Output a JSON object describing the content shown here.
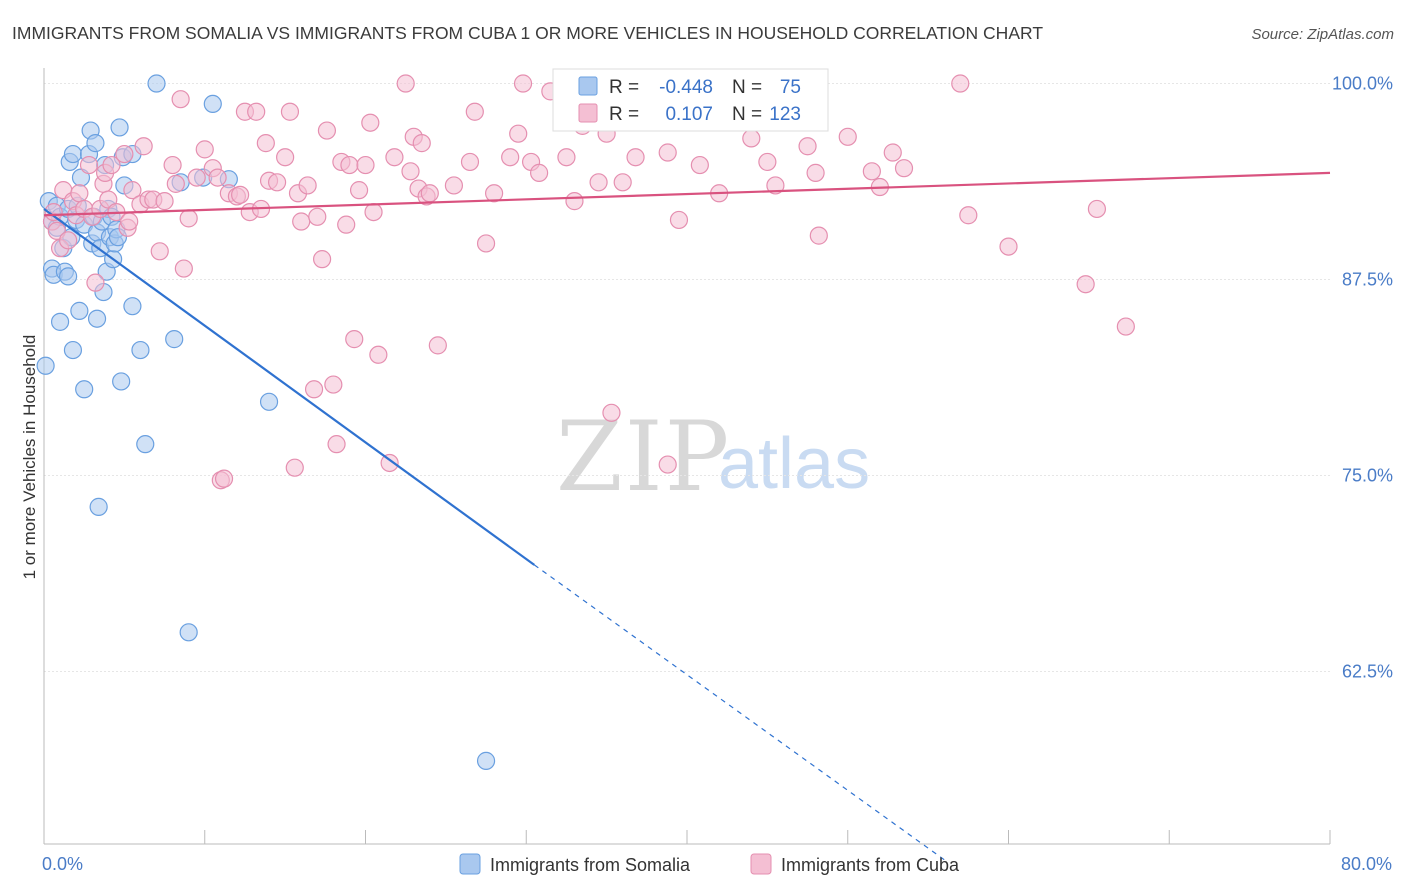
{
  "chart_data": {
    "type": "scatter",
    "title": "IMMIGRANTS FROM SOMALIA VS IMMIGRANTS FROM CUBA 1 OR MORE VEHICLES IN HOUSEHOLD CORRELATION CHART",
    "source": "Source: ZipAtlas.com",
    "xlabel": "",
    "ylabel": "1 or more Vehicles in Household",
    "xlim": [
      0,
      80
    ],
    "ylim": [
      51.5,
      101.5
    ],
    "x_tick_labels": [
      "0.0%",
      "80.0%"
    ],
    "y_ticks": [
      100,
      87.5,
      75,
      62.5
    ],
    "y_tick_labels": [
      "100.0%",
      "87.5%",
      "75.0%",
      "62.5%"
    ],
    "legend_position": "bottom-center",
    "watermark": {
      "zip": "ZIP",
      "atlas": "atlas"
    },
    "stats": [
      {
        "r_label": "R =",
        "r": "-0.448",
        "n_label": "N =",
        "n": "75"
      },
      {
        "r_label": "R =",
        "r": "0.107",
        "n_label": "N =",
        "n": "123"
      }
    ],
    "series": [
      {
        "name": "Immigrants from Somalia",
        "color": "#6aa0e0",
        "fill": "#a9c8ef",
        "line_color": "#2f72d0",
        "trend": {
          "x0": 0,
          "y0": 92.0,
          "x1": 30.5,
          "y1": 69.3,
          "dash_x1": 56,
          "dash_y1": 50.5
        },
        "points": [
          [
            0.1,
            82.0
          ],
          [
            0.3,
            92.5
          ],
          [
            0.5,
            88.2
          ],
          [
            0.5,
            91.2
          ],
          [
            0.6,
            87.8
          ],
          [
            0.8,
            92.2
          ],
          [
            0.8,
            90.8
          ],
          [
            1.0,
            91.5
          ],
          [
            1.0,
            84.8
          ],
          [
            1.2,
            89.5
          ],
          [
            1.3,
            88.0
          ],
          [
            1.5,
            87.7
          ],
          [
            1.5,
            92.0
          ],
          [
            1.6,
            95.0
          ],
          [
            1.7,
            90.2
          ],
          [
            1.8,
            95.5
          ],
          [
            1.8,
            83.0
          ],
          [
            2.0,
            91.3
          ],
          [
            2.1,
            92.2
          ],
          [
            2.2,
            85.5
          ],
          [
            2.3,
            94.0
          ],
          [
            2.5,
            91.0
          ],
          [
            2.5,
            80.5
          ],
          [
            2.8,
            95.5
          ],
          [
            2.9,
            97.0
          ],
          [
            3.0,
            89.8
          ],
          [
            3.1,
            91.5
          ],
          [
            3.2,
            96.2
          ],
          [
            3.3,
            90.5
          ],
          [
            3.3,
            85.0
          ],
          [
            3.4,
            73.0
          ],
          [
            3.5,
            89.5
          ],
          [
            3.6,
            91.2
          ],
          [
            3.7,
            86.7
          ],
          [
            3.8,
            94.8
          ],
          [
            3.9,
            88.0
          ],
          [
            4.0,
            92.0
          ],
          [
            4.1,
            90.2
          ],
          [
            4.2,
            91.5
          ],
          [
            4.3,
            88.8
          ],
          [
            4.4,
            89.8
          ],
          [
            4.5,
            90.7
          ],
          [
            4.6,
            90.2
          ],
          [
            4.7,
            97.2
          ],
          [
            4.8,
            81.0
          ],
          [
            4.9,
            95.3
          ],
          [
            5.0,
            93.5
          ],
          [
            5.5,
            95.5
          ],
          [
            5.5,
            85.8
          ],
          [
            6.0,
            83.0
          ],
          [
            6.3,
            77.0
          ],
          [
            7.0,
            100.0
          ],
          [
            8.1,
            83.7
          ],
          [
            8.5,
            93.7
          ],
          [
            9.0,
            65.0
          ],
          [
            9.9,
            94.0
          ],
          [
            10.5,
            98.7
          ],
          [
            11.5,
            93.9
          ],
          [
            14.0,
            79.7
          ],
          [
            27.5,
            56.8
          ]
        ]
      },
      {
        "name": "Immigrants from Cuba",
        "color": "#e58fb0",
        "fill": "#f4bfd3",
        "line_color": "#d9527f",
        "trend": {
          "x0": 0,
          "y0": 91.6,
          "x1": 80,
          "y1": 94.3
        },
        "points": [
          [
            0.5,
            91.2
          ],
          [
            0.6,
            91.8
          ],
          [
            0.8,
            90.6
          ],
          [
            1.0,
            89.5
          ],
          [
            1.2,
            93.2
          ],
          [
            1.5,
            90.0
          ],
          [
            1.8,
            92.5
          ],
          [
            2.0,
            91.6
          ],
          [
            2.2,
            93.0
          ],
          [
            2.5,
            92.0
          ],
          [
            2.8,
            94.8
          ],
          [
            3.0,
            91.5
          ],
          [
            3.2,
            87.3
          ],
          [
            3.5,
            92.0
          ],
          [
            3.7,
            93.6
          ],
          [
            3.8,
            94.3
          ],
          [
            4.0,
            92.6
          ],
          [
            4.2,
            94.8
          ],
          [
            4.5,
            91.8
          ],
          [
            5.0,
            95.5
          ],
          [
            5.2,
            90.8
          ],
          [
            5.3,
            91.2
          ],
          [
            5.5,
            93.2
          ],
          [
            6.0,
            92.3
          ],
          [
            6.2,
            96.0
          ],
          [
            6.5,
            92.6
          ],
          [
            6.8,
            92.6
          ],
          [
            7.2,
            89.3
          ],
          [
            7.5,
            92.5
          ],
          [
            8.0,
            94.8
          ],
          [
            8.2,
            93.6
          ],
          [
            8.5,
            99.0
          ],
          [
            8.7,
            88.2
          ],
          [
            9.0,
            91.4
          ],
          [
            9.5,
            94.0
          ],
          [
            10.0,
            95.8
          ],
          [
            10.5,
            94.6
          ],
          [
            10.8,
            94.0
          ],
          [
            11.0,
            74.7
          ],
          [
            11.2,
            74.8
          ],
          [
            11.5,
            93.0
          ],
          [
            12.0,
            92.8
          ],
          [
            12.2,
            92.9
          ],
          [
            12.5,
            98.2
          ],
          [
            12.8,
            91.8
          ],
          [
            13.2,
            98.2
          ],
          [
            13.5,
            92.0
          ],
          [
            13.8,
            96.2
          ],
          [
            14.0,
            93.8
          ],
          [
            14.5,
            93.7
          ],
          [
            15.0,
            95.3
          ],
          [
            15.3,
            98.2
          ],
          [
            15.6,
            75.5
          ],
          [
            15.8,
            93.0
          ],
          [
            16.0,
            91.2
          ],
          [
            16.4,
            93.5
          ],
          [
            16.8,
            80.5
          ],
          [
            17.0,
            91.5
          ],
          [
            17.3,
            88.8
          ],
          [
            17.6,
            97.0
          ],
          [
            18.0,
            80.8
          ],
          [
            18.2,
            77.0
          ],
          [
            18.5,
            95.0
          ],
          [
            18.8,
            91.0
          ],
          [
            19.0,
            94.8
          ],
          [
            19.3,
            83.7
          ],
          [
            19.6,
            93.2
          ],
          [
            20.0,
            94.8
          ],
          [
            20.3,
            97.5
          ],
          [
            20.5,
            91.8
          ],
          [
            20.8,
            82.7
          ],
          [
            21.5,
            75.8
          ],
          [
            21.8,
            95.3
          ],
          [
            22.5,
            100.0
          ],
          [
            22.8,
            94.4
          ],
          [
            23.0,
            96.6
          ],
          [
            23.3,
            93.3
          ],
          [
            23.5,
            96.2
          ],
          [
            23.8,
            92.8
          ],
          [
            24.0,
            93.0
          ],
          [
            24.5,
            83.3
          ],
          [
            25.5,
            93.5
          ],
          [
            26.5,
            95.0
          ],
          [
            26.8,
            98.2
          ],
          [
            27.5,
            89.8
          ],
          [
            28.0,
            93.0
          ],
          [
            29.0,
            95.3
          ],
          [
            29.5,
            96.8
          ],
          [
            29.8,
            100.0
          ],
          [
            30.3,
            95.0
          ],
          [
            30.8,
            94.3
          ],
          [
            31.5,
            99.5
          ],
          [
            32.5,
            95.3
          ],
          [
            33.0,
            92.5
          ],
          [
            33.5,
            97.3
          ],
          [
            34.5,
            93.7
          ],
          [
            35.0,
            96.8
          ],
          [
            35.3,
            79.0
          ],
          [
            36.0,
            93.7
          ],
          [
            36.8,
            95.3
          ],
          [
            38.8,
            95.6
          ],
          [
            38.8,
            75.7
          ],
          [
            39.5,
            91.3
          ],
          [
            40.8,
            94.8
          ],
          [
            42.0,
            93.0
          ],
          [
            44.0,
            96.5
          ],
          [
            45.0,
            95.0
          ],
          [
            45.5,
            93.5
          ],
          [
            47.5,
            96.0
          ],
          [
            48.0,
            94.3
          ],
          [
            48.2,
            90.3
          ],
          [
            50.0,
            96.6
          ],
          [
            51.5,
            94.4
          ],
          [
            52.0,
            93.4
          ],
          [
            52.8,
            95.6
          ],
          [
            53.5,
            94.6
          ],
          [
            57.0,
            100.0
          ],
          [
            57.5,
            91.6
          ],
          [
            60.0,
            89.6
          ],
          [
            64.8,
            87.2
          ],
          [
            65.5,
            92.0
          ],
          [
            67.3,
            84.5
          ]
        ]
      }
    ]
  }
}
